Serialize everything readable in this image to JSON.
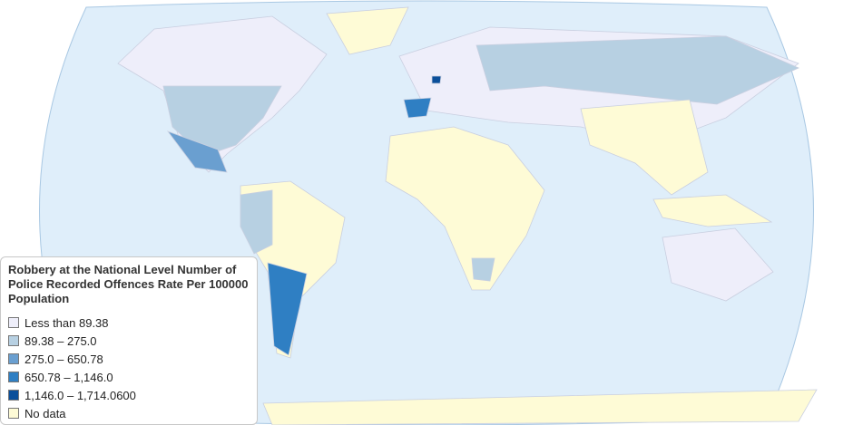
{
  "legend": {
    "title": "Robbery at the National Level Number of Police Recorded Offences Rate Per 100000 Population",
    "items": [
      {
        "label": "Less than 89.38",
        "color": "#eeeefa"
      },
      {
        "label": "89.38 – 275.0",
        "color": "#b7d0e2"
      },
      {
        "label": "275.0 – 650.78",
        "color": "#6a9fd0"
      },
      {
        "label": "650.78 – 1,146.0",
        "color": "#2f7fc3"
      },
      {
        "label": "1,146.0 – 1,714.0600",
        "color": "#0b4f9a"
      },
      {
        "label": "No data",
        "color": "#fefbd6"
      }
    ]
  }
}
